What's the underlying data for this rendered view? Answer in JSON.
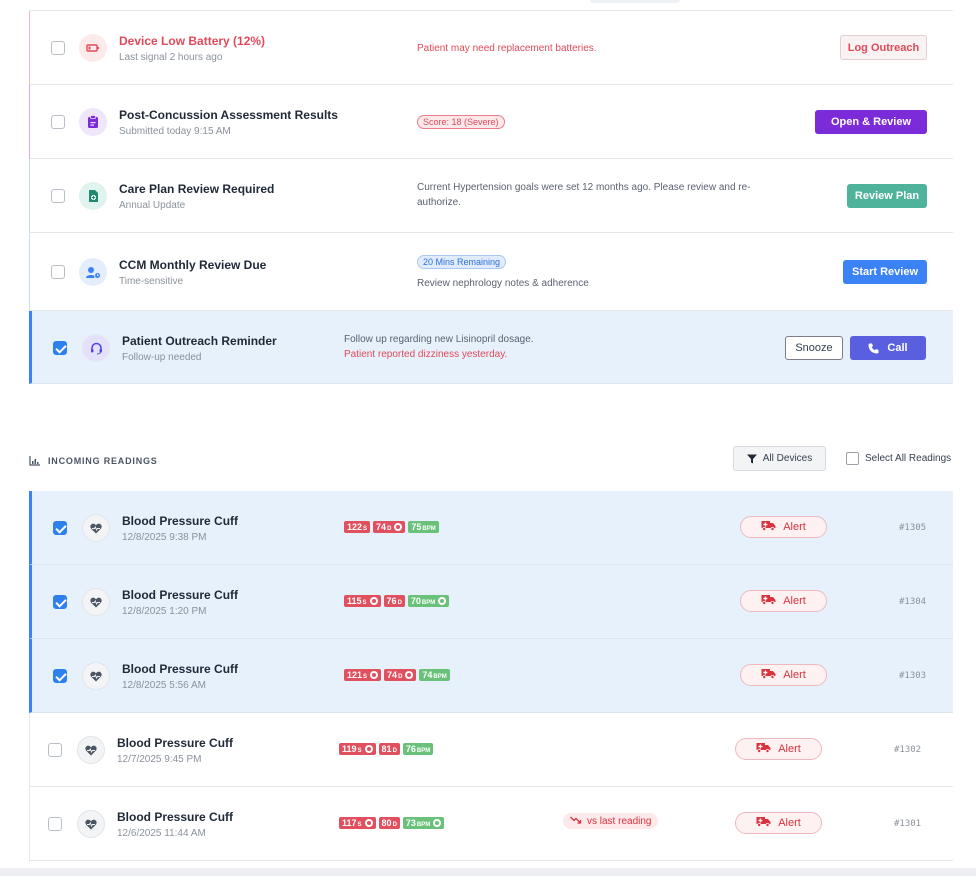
{
  "tasks": [
    {
      "title": "Device Low Battery (12%)",
      "subtitle": "Last signal 2 hours ago",
      "description": "Patient may need replacement batteries.",
      "action": "Log Outreach",
      "icon": "battery-icon",
      "checked": false
    },
    {
      "title": "Post-Concussion Assessment Results",
      "subtitle": "Submitted today 9:15 AM",
      "badge": "Score: 18 (Severe)",
      "action": "Open & Review",
      "icon": "clipboard-icon",
      "checked": false
    },
    {
      "title": "Care Plan Review Required",
      "subtitle": "Annual Update",
      "description": "Current Hypertension goals were set 12 months ago. Please review and re-authorize.",
      "action": "Review Plan",
      "icon": "document-icon",
      "checked": false
    },
    {
      "title": "CCM Monthly Review Due",
      "subtitle": "Time-sensitive",
      "badge": "20 Mins Remaining",
      "description": "Review nephrology notes & adherence",
      "action": "Start Review",
      "icon": "user-clock-icon",
      "checked": false
    },
    {
      "title": "Patient Outreach Reminder",
      "subtitle": "Follow-up needed",
      "description": "Follow up regarding new Lisinopril dosage.",
      "description_alert": "Patient reported dizziness yesterday.",
      "secondary_action": "Snooze",
      "action": "Call",
      "icon": "headset-icon",
      "checked": true
    }
  ],
  "readings_section": {
    "title": "INCOMING READINGS",
    "filter_label": "All Devices",
    "select_all_label": "Select All Readings"
  },
  "readings": [
    {
      "device": "Blood Pressure Cuff",
      "timestamp": "12/8/2025 9:38 PM",
      "sys": "122",
      "dia": "74",
      "bpm": "75",
      "status": "Alert",
      "id": "#1305",
      "checked": true
    },
    {
      "device": "Blood Pressure Cuff",
      "timestamp": "12/8/2025 1:20 PM",
      "sys": "115",
      "dia": "76",
      "bpm": "70",
      "status": "Alert",
      "id": "#1304",
      "checked": true
    },
    {
      "device": "Blood Pressure Cuff",
      "timestamp": "12/8/2025 5:56 AM",
      "sys": "121",
      "dia": "74",
      "bpm": "74",
      "status": "Alert",
      "id": "#1303",
      "checked": true
    },
    {
      "device": "Blood Pressure Cuff",
      "timestamp": "12/7/2025 9:45 PM",
      "sys": "119",
      "dia": "81",
      "bpm": "76",
      "status": "Alert",
      "id": "#1302",
      "checked": false
    },
    {
      "device": "Blood Pressure Cuff",
      "timestamp": "12/6/2025 11:44 AM",
      "sys": "117",
      "dia": "80",
      "bpm": "73",
      "status": "Alert",
      "id": "#1301",
      "checked": false,
      "trend": "vs last reading"
    }
  ],
  "units": {
    "sys": "S",
    "dia": "D",
    "bpm": "BPM"
  },
  "colors": {
    "alert_red": "#e0505e",
    "normal_green": "#6ac27a",
    "selection_blue": "#3b82f6",
    "selected_bg": "#e7f1fb"
  }
}
